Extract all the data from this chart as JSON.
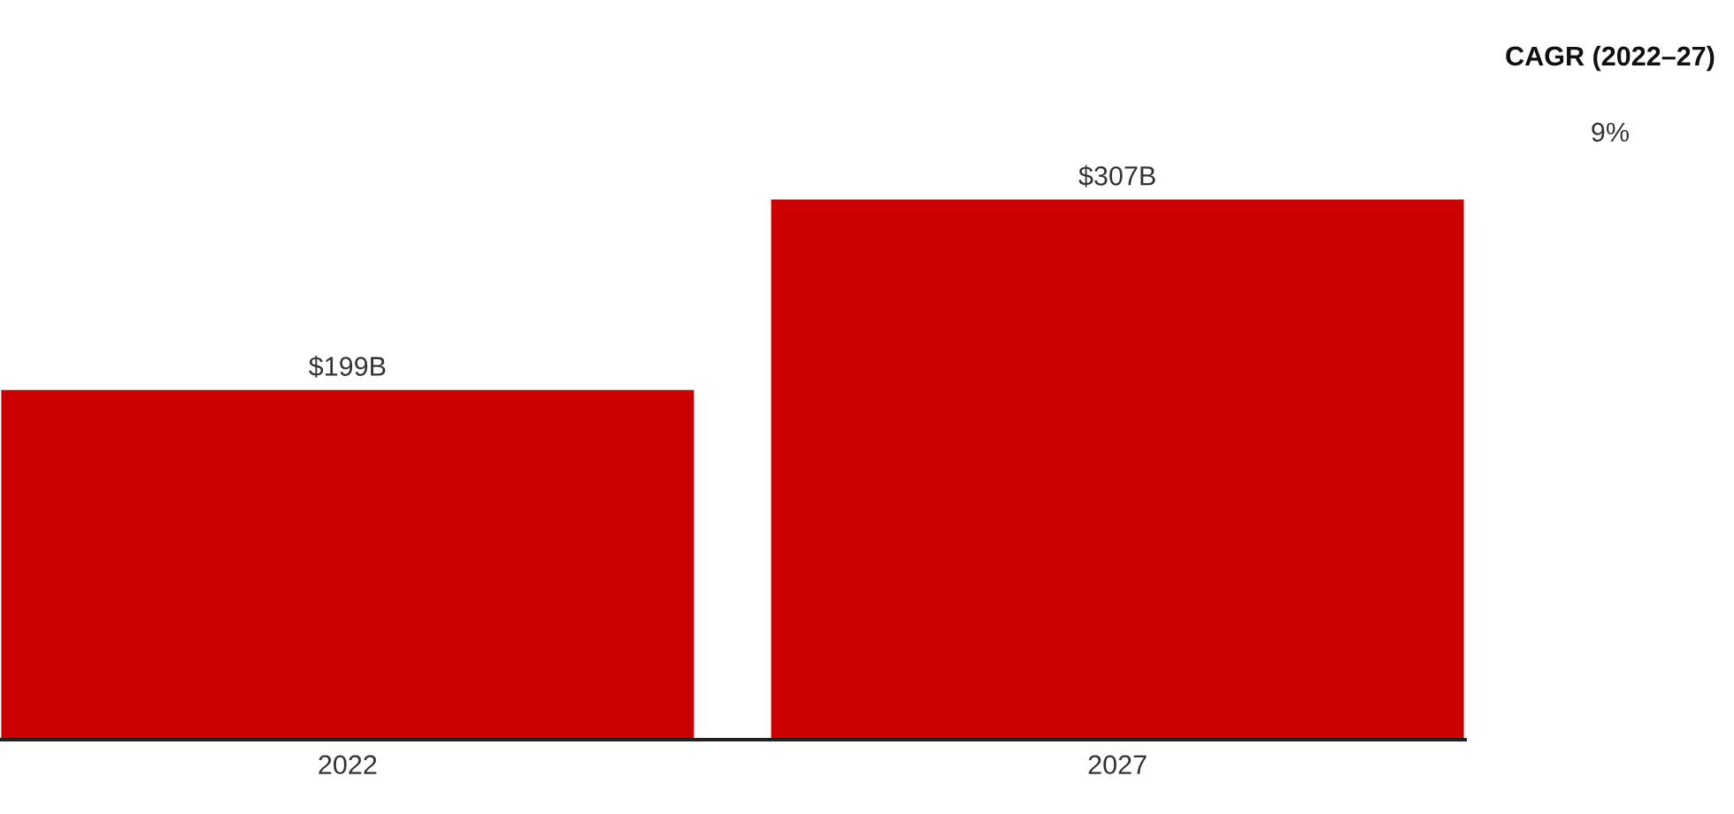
{
  "chart_data": {
    "type": "bar",
    "categories": [
      "2022",
      "2027"
    ],
    "values": [
      199,
      307
    ],
    "value_labels": [
      "$199B",
      "$307B"
    ],
    "color": "#cc0000",
    "annotations": [
      "CAGR (2022–27)",
      "9%"
    ],
    "grid": false,
    "legend": false
  }
}
